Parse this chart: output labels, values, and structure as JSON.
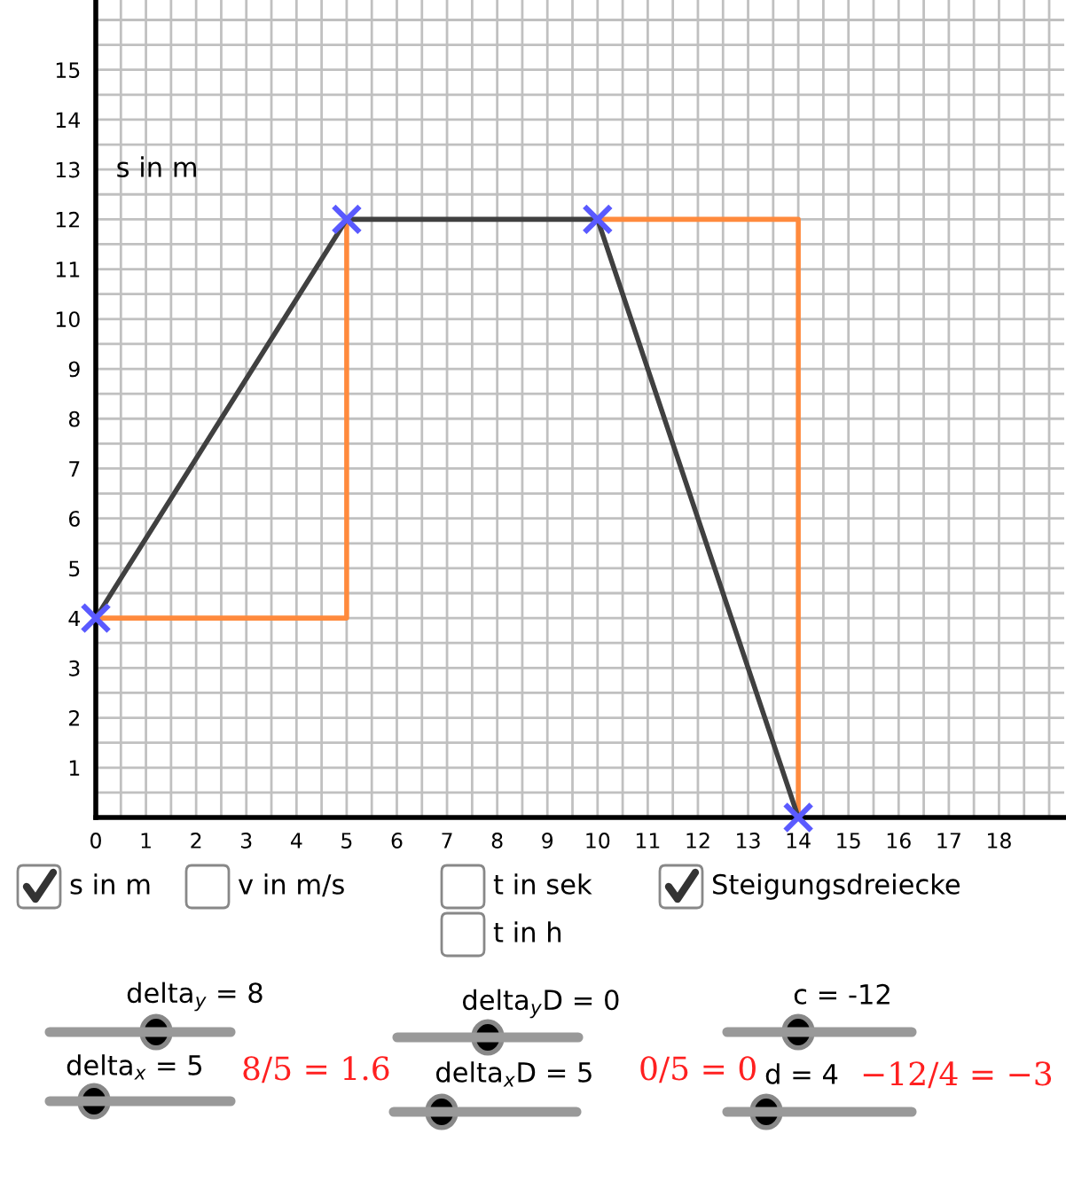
{
  "chart_data": {
    "type": "line",
    "ylabel": "s in m",
    "xlim": [
      0,
      19.3
    ],
    "ylim": [
      0,
      16.4
    ],
    "xticks": [
      0,
      1,
      2,
      3,
      4,
      5,
      6,
      7,
      8,
      9,
      10,
      11,
      12,
      13,
      14,
      15,
      16,
      17,
      18
    ],
    "yticks": [
      1,
      2,
      3,
      4,
      5,
      6,
      7,
      8,
      9,
      10,
      11,
      12,
      13,
      14,
      15
    ],
    "grid": true,
    "series": [
      {
        "x": [
          0,
          5,
          5
        ],
        "values": [
          4,
          4,
          12
        ],
        "color": "#ff8a3d"
      },
      {
        "x": [
          10,
          14,
          14
        ],
        "values": [
          12,
          12,
          0
        ],
        "color": "#ff8a3d"
      },
      {
        "x": [
          0,
          5,
          10,
          14
        ],
        "values": [
          4,
          12,
          12,
          0
        ],
        "color": "#404040"
      },
      {
        "type": "scatter",
        "x": [
          0,
          5,
          10,
          14
        ],
        "values": [
          4,
          12,
          12,
          0
        ],
        "color": "#5a5aff",
        "marker": "cross"
      }
    ],
    "annotations": [
      "s in m",
      "v in m/s",
      "t in sek",
      "t in h",
      "Steigungsdreiecke",
      "delta$_{y}$ = 8",
      "delta$_{x}$ = 5",
      "delta$_{y}$D = 0",
      "delta$_{x}$D = 5",
      "c = -12",
      "d = 4",
      "8/5 = 1.6",
      "0/5 = 0",
      "−12/4 = −3"
    ]
  }
}
